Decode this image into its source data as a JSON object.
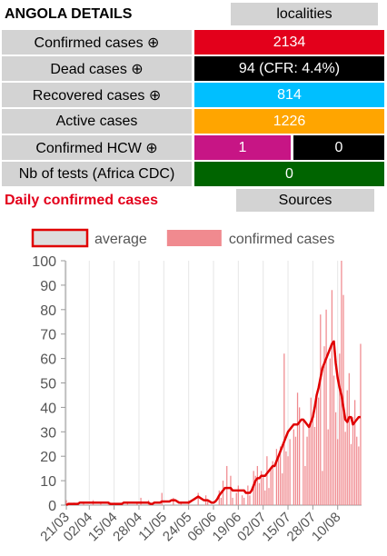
{
  "header": {
    "title": "ANGOLA DETAILS",
    "button": "localities"
  },
  "rows": [
    {
      "label": "Confirmed cases ⊕",
      "cells": [
        {
          "value": 2134,
          "color": "#e3001b"
        }
      ]
    },
    {
      "label": "Dead cases ⊕",
      "cells": [
        {
          "value": "94 (CFR: 4.4%)",
          "color": "#000000"
        }
      ]
    },
    {
      "label": "Recovered cases ⊕",
      "cells": [
        {
          "value": 814,
          "color": "#00bfff"
        }
      ]
    },
    {
      "label": "Active cases",
      "cells": [
        {
          "value": 1226,
          "color": "#ffa500"
        }
      ]
    },
    {
      "label": "Confirmed HCW ⊕",
      "cells": [
        {
          "value": 1,
          "color": "#c71585"
        },
        {
          "value": 0,
          "color": "#000000"
        }
      ]
    },
    {
      "label": "Nb of tests (Africa CDC)",
      "cells": [
        {
          "value": 0,
          "color": "#006400"
        }
      ]
    }
  ],
  "sources_button": "Sources",
  "chart_data": {
    "type": "bar",
    "title": "Daily confirmed cases",
    "categories": [
      "21/03",
      null,
      null,
      null,
      null,
      null,
      null,
      null,
      null,
      null,
      null,
      null,
      "02/04",
      null,
      null,
      null,
      null,
      null,
      null,
      null,
      null,
      null,
      null,
      null,
      null,
      "15/04",
      null,
      null,
      null,
      null,
      null,
      null,
      null,
      null,
      null,
      null,
      null,
      null,
      "28/04",
      null,
      null,
      null,
      null,
      null,
      null,
      null,
      null,
      null,
      null,
      null,
      null,
      "11/05",
      null,
      null,
      null,
      null,
      null,
      null,
      null,
      null,
      null,
      null,
      null,
      null,
      "24/05",
      null,
      null,
      null,
      null,
      null,
      null,
      null,
      null,
      null,
      null,
      null,
      null,
      "06/06",
      null,
      null,
      null,
      null,
      null,
      null,
      null,
      null,
      null,
      null,
      null,
      null,
      "19/06",
      null,
      null,
      null,
      null,
      null,
      null,
      null,
      null,
      null,
      null,
      null,
      null,
      "02/07",
      null,
      null,
      null,
      null,
      null,
      null,
      null,
      null,
      null,
      null,
      null,
      null,
      "15/07",
      null,
      null,
      null,
      null,
      null,
      null,
      null,
      null,
      null,
      null,
      null,
      null,
      "28/07",
      null,
      null,
      null,
      null,
      null,
      null,
      null,
      null,
      null,
      null,
      null,
      null,
      "10/08",
      null,
      null,
      null,
      null,
      null,
      null,
      null,
      null,
      null,
      null,
      null,
      null
    ],
    "series": [
      {
        "name": "average",
        "type": "line",
        "color": "#e00000",
        "values": [
          0,
          0.5,
          0.5,
          0.5,
          0.5,
          0.5,
          0.5,
          1,
          1,
          1,
          1,
          1,
          1,
          1,
          1,
          1,
          1,
          1,
          1,
          1,
          1,
          1,
          1,
          0.5,
          0.5,
          0.5,
          0.5,
          0.5,
          0.5,
          0.5,
          1,
          1,
          1,
          1,
          1,
          1,
          1,
          1,
          1,
          1,
          1,
          1,
          1,
          1,
          0.5,
          0.5,
          1,
          1,
          1,
          1,
          1.5,
          1.5,
          1.5,
          1.5,
          1.5,
          2,
          2,
          2,
          1.5,
          1,
          1,
          1,
          1,
          1,
          1,
          1.5,
          2,
          2.5,
          3,
          3.5,
          3,
          2.5,
          2,
          2,
          2,
          1.5,
          1,
          1,
          1.5,
          2.5,
          4,
          5,
          6,
          7,
          7,
          7,
          7,
          6,
          6,
          6,
          6,
          6,
          6,
          6,
          5,
          5,
          5,
          6,
          8,
          10,
          11,
          11,
          12,
          12,
          12,
          13,
          14,
          15,
          16,
          16,
          18,
          20,
          22,
          24,
          26,
          28,
          30,
          31,
          32,
          33,
          33,
          33,
          34,
          35,
          35,
          34,
          33,
          32,
          34,
          36,
          40,
          45,
          48,
          52,
          56,
          58,
          60,
          62,
          64,
          66,
          67,
          58,
          52,
          48,
          45,
          40,
          35,
          34,
          36,
          36,
          33,
          34,
          35,
          36,
          36
        ]
      },
      {
        "name": "confirmed cases",
        "type": "bar",
        "color": "#f08a8f",
        "values": [
          2,
          0,
          0,
          0,
          1,
          0,
          0,
          0,
          0,
          1,
          0,
          0,
          0,
          0,
          2,
          0,
          0,
          0,
          1,
          0,
          0,
          0,
          1,
          0,
          0,
          0,
          0,
          0,
          0,
          0,
          0,
          0,
          1,
          0,
          0,
          0,
          0,
          1,
          0,
          3,
          0,
          0,
          0,
          2,
          0,
          0,
          0,
          0,
          0,
          0,
          5,
          0,
          0,
          0,
          0,
          0,
          3,
          0,
          0,
          0,
          1,
          0,
          0,
          0,
          2,
          0,
          0,
          0,
          0,
          5,
          0,
          0,
          0,
          4,
          2,
          0,
          0,
          0,
          0,
          0,
          6,
          3,
          10,
          0,
          16,
          0,
          12,
          3,
          0,
          5,
          8,
          0,
          4,
          3,
          0,
          8,
          4,
          0,
          14,
          12,
          16,
          9,
          14,
          12,
          6,
          20,
          7,
          15,
          18,
          0,
          23,
          20,
          24,
          13,
          62,
          22,
          20,
          27,
          0,
          31,
          28,
          46,
          40,
          0,
          35,
          16,
          28,
          32,
          44,
          38,
          32,
          45,
          44,
          78,
          14,
          65,
          80,
          31,
          60,
          88,
          53,
          38,
          27,
          62,
          100,
          86,
          30,
          47,
          54,
          25,
          36,
          43,
          28,
          24,
          66
        ]
      }
    ],
    "ylim": [
      0,
      100
    ],
    "yticks": [
      0,
      10,
      20,
      30,
      40,
      50,
      60,
      70,
      80,
      90,
      100
    ],
    "grid": "x"
  }
}
